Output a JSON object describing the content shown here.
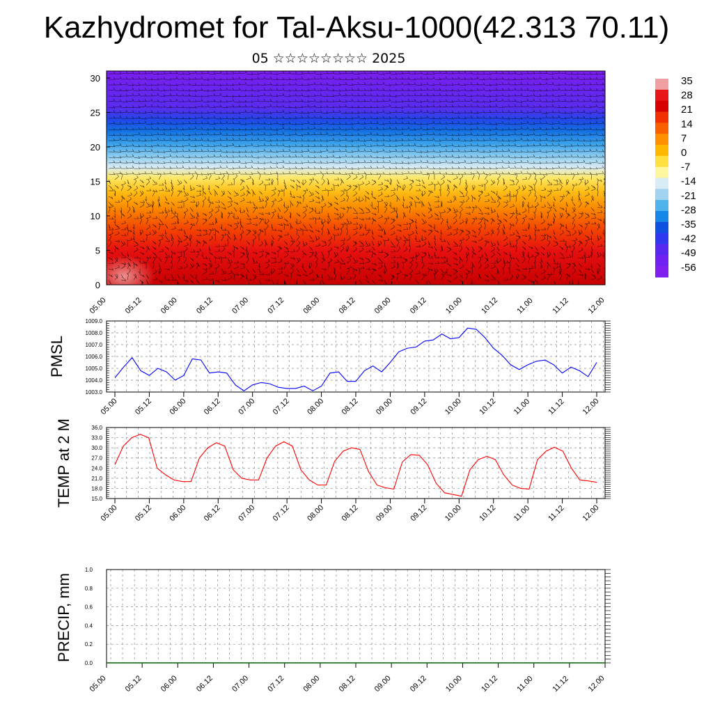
{
  "header": {
    "title": "Kazhydromet for Tal-Aksu-1000(42.313 70.11)",
    "subtitle": "05 ☆☆☆☆☆☆☆☆ 2025"
  },
  "colors": {
    "pmsl_line": "#0000ff",
    "temp_line": "#ff0000",
    "precip_line": "#006400",
    "wind_barb": "#000000",
    "grid": "#888888"
  },
  "chart_data": [
    {
      "id": "crosssection",
      "type": "heatmap",
      "title": "",
      "xlabel": "",
      "ylabel": "",
      "x_ticks": [
        "05.00",
        "05.12",
        "06.00",
        "06.12",
        "07.00",
        "07.12",
        "08.00",
        "08.12",
        "09.00",
        "09.12",
        "10.00",
        "10.12",
        "11.00",
        "11.12",
        "12.00"
      ],
      "y_ticks": [
        "0",
        "5",
        "10",
        "15",
        "20",
        "25",
        "30"
      ],
      "ylim": [
        0,
        30
      ],
      "overlay": "wind barbs",
      "colorbar": {
        "labels": [
          "35",
          "28",
          "21",
          "14",
          "7",
          "0",
          "-7",
          "-14",
          "-21",
          "-28",
          "-35",
          "-42",
          "-49",
          "-56"
        ],
        "colors": [
          "#f0a0a0",
          "#e81818",
          "#d80000",
          "#f03000",
          "#f86000",
          "#ff9000",
          "#ffb800",
          "#ffe040",
          "#fff6a0",
          "#d8ecf6",
          "#a0d4f0",
          "#50b4ec",
          "#1888e8",
          "#1050e0",
          "#3038f0",
          "#5828f0",
          "#7020f0",
          "#8020f0"
        ]
      }
    },
    {
      "id": "pmsl",
      "type": "line",
      "ylabel": "PMSL",
      "xlabel": "",
      "ylim": [
        1003.0,
        1009.0
      ],
      "y_ticks": [
        "1003.0",
        "1004.0",
        "1005.0",
        "1006.0",
        "1007.0",
        "1008.0",
        "1009.0"
      ],
      "x_ticks": [
        "05.00",
        "05.12",
        "06.00",
        "06.12",
        "07.00",
        "07.12",
        "08.00",
        "08.12",
        "09.00",
        "09.12",
        "10.00",
        "10.12",
        "11.00",
        "11.12",
        "12.00"
      ],
      "grid": true,
      "series": [
        {
          "values": [
            1004.2,
            1005.1,
            1005.9,
            1004.8,
            1004.4,
            1005.0,
            1004.7,
            1004.0,
            1004.4,
            1005.8,
            1005.7,
            1004.6,
            1004.7,
            1004.6,
            1003.6,
            1003.1,
            1003.6,
            1003.8,
            1003.7,
            1003.4,
            1003.3,
            1003.3,
            1003.5,
            1003.1,
            1003.5,
            1004.6,
            1004.7,
            1003.9,
            1003.9,
            1004.8,
            1005.2,
            1004.7,
            1005.5,
            1006.4,
            1006.7,
            1006.8,
            1007.3,
            1007.4,
            1007.9,
            1007.5,
            1007.6,
            1008.4,
            1008.3,
            1007.6,
            1006.7,
            1006.1,
            1005.3,
            1004.9,
            1005.3,
            1005.6,
            1005.7,
            1005.3,
            1004.6,
            1005.1,
            1004.8,
            1004.3,
            1005.5
          ]
        }
      ]
    },
    {
      "id": "temp",
      "type": "line",
      "ylabel": "TEMP at 2 M",
      "xlabel": "",
      "ylim": [
        15.0,
        36.0
      ],
      "y_ticks": [
        "15.0",
        "18.0",
        "21.0",
        "24.0",
        "27.0",
        "30.0",
        "33.0",
        "36.0"
      ],
      "x_ticks": [
        "05.00",
        "05.12",
        "06.00",
        "06.12",
        "07.00",
        "07.12",
        "08.00",
        "08.12",
        "09.00",
        "09.12",
        "10.00",
        "10.12",
        "11.00",
        "11.12",
        "12.00"
      ],
      "grid": true,
      "series": [
        {
          "values": [
            25.0,
            30.5,
            33.0,
            34.0,
            33.0,
            24.0,
            22.0,
            20.5,
            20.0,
            20.0,
            27.0,
            30.0,
            31.5,
            30.5,
            23.5,
            21.0,
            20.5,
            20.5,
            27.0,
            30.5,
            31.8,
            30.5,
            23.5,
            20.5,
            19.0,
            19.0,
            26.0,
            29.0,
            30.0,
            29.5,
            23.0,
            19.0,
            18.2,
            17.8,
            25.8,
            28.0,
            27.8,
            25.0,
            19.5,
            16.7,
            16.2,
            15.7,
            23.5,
            26.5,
            27.5,
            26.5,
            22.0,
            19.0,
            18.0,
            17.8,
            26.5,
            29.0,
            30.2,
            29.0,
            24.0,
            20.5,
            20.2,
            19.8
          ]
        }
      ]
    },
    {
      "id": "precip",
      "type": "line",
      "ylabel": "PRECIP, mm",
      "xlabel": "",
      "ylim": [
        0.0,
        1.0
      ],
      "y_ticks": [
        "0.0",
        "0.2",
        "0.4",
        "0.6",
        "0.8",
        "1.0"
      ],
      "x_ticks": [
        "05.00",
        "05.12",
        "06.00",
        "06.12",
        "07.00",
        "07.12",
        "08.00",
        "08.12",
        "09.00",
        "09.12",
        "10.00",
        "10.12",
        "11.00",
        "11.12",
        "12.00"
      ],
      "grid": true,
      "series": [
        {
          "values": [
            0,
            0,
            0,
            0,
            0,
            0,
            0,
            0,
            0,
            0,
            0,
            0,
            0,
            0,
            0,
            0,
            0,
            0,
            0,
            0,
            0,
            0,
            0,
            0,
            0,
            0,
            0,
            0,
            0,
            0,
            0,
            0,
            0,
            0,
            0,
            0,
            0,
            0,
            0,
            0,
            0,
            0,
            0,
            0,
            0,
            0,
            0,
            0,
            0,
            0,
            0,
            0,
            0,
            0,
            0,
            0,
            0
          ]
        }
      ]
    }
  ]
}
